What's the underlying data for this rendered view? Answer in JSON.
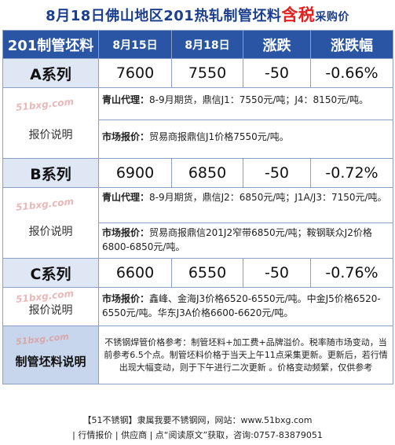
{
  "title": {
    "main": "8月18日佛山地区201热轧制管坯料",
    "accent": "含税",
    "suffix": "采购价"
  },
  "header": {
    "col0": "201制管坯料",
    "col1": "8月15日",
    "col2": "8月18日",
    "col3": "涨跌",
    "col4": "涨跌幅"
  },
  "rows": [
    {
      "series": "A系列",
      "p1": "7600",
      "p2": "7550",
      "chg": "-50",
      "pct": "-0.66%",
      "note_label": "报价说明",
      "watermark": "51bxg.com",
      "lines": [
        {
          "key": "青山代理：",
          "text": "8-9月期货，鼎信J1：7550元/吨；J4：8150元/吨。"
        },
        {
          "key": "市场报价：",
          "text": "贸易商报鼎信J1价格7550元/吨。"
        }
      ]
    },
    {
      "series": "B系列",
      "p1": "6900",
      "p2": "6850",
      "chg": "-50",
      "pct": "-0.72%",
      "note_label": "报价说明",
      "watermark": "51bxg.com",
      "lines": [
        {
          "key": "青山代理：",
          "text": "8-9月期货，鼎信J2：6850元/吨；J1A/J3：7150元/吨。"
        },
        {
          "key": "市场报价：",
          "text": "贸易商报鼎信201J2窄带6850元/吨；鞍钢联众J2价格6800-6850元/吨。"
        }
      ]
    },
    {
      "series": "C系列",
      "p1": "6600",
      "p2": "6550",
      "chg": "-50",
      "pct": "-0.76%",
      "note_label": "报价说明",
      "watermark": "51bxg.com",
      "lines": [
        {
          "key": "市场报价：",
          "text": "鑫峰、金海J3价格6520-6550元/吨。中金J5价格6520-6550元/吨。华东J3A价格6600-6620元/吨。"
        }
      ]
    }
  ],
  "summary": {
    "label": "制管坯料说明",
    "watermark": "51bxg.com",
    "text": "不锈钢焊管价格参考：制管坯料+加工费+品牌溢价。税率随市场变动，当前参考6.5个点。制管坯料价格于当天上午11点采集更新。更新后，若行情出现大幅变动，则于下午进行二次更新 。价格变动频繁，仅供参考"
  },
  "footer": {
    "line1": "【51不锈钢】隶属我要不锈钢网，网站：www.51bxg.com",
    "line2": "| 行情报价 | 供应商 | 点“阅读原文”获取，咨询:0757-83879051"
  }
}
